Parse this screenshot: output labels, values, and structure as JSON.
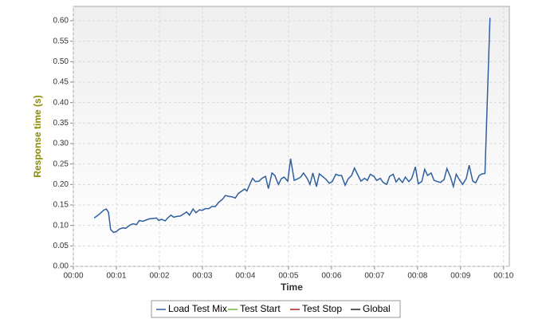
{
  "chart_data": {
    "type": "line",
    "xlabel": "Time",
    "ylabel": "Response time (s)",
    "grid": true,
    "xlim": [
      0,
      608
    ],
    "ylim": [
      0,
      0.635
    ],
    "xticks": [
      {
        "value": 0,
        "label": "00:00"
      },
      {
        "value": 60,
        "label": "00:01"
      },
      {
        "value": 120,
        "label": "00:02"
      },
      {
        "value": 180,
        "label": "00:03"
      },
      {
        "value": 240,
        "label": "00:04"
      },
      {
        "value": 300,
        "label": "00:05"
      },
      {
        "value": 360,
        "label": "00:06"
      },
      {
        "value": 420,
        "label": "00:07"
      },
      {
        "value": 480,
        "label": "00:08"
      },
      {
        "value": 540,
        "label": "00:09"
      },
      {
        "value": 600,
        "label": "00:10"
      }
    ],
    "yticks": [
      {
        "value": 0,
        "label": "0.00"
      },
      {
        "value": 0.05,
        "label": "0.05"
      },
      {
        "value": 0.1,
        "label": "0.10"
      },
      {
        "value": 0.15,
        "label": "0.15"
      },
      {
        "value": 0.2,
        "label": "0.20"
      },
      {
        "value": 0.25,
        "label": "0.25"
      },
      {
        "value": 0.3,
        "label": "0.30"
      },
      {
        "value": 0.35,
        "label": "0.35"
      },
      {
        "value": 0.4,
        "label": "0.40"
      },
      {
        "value": 0.45,
        "label": "0.45"
      },
      {
        "value": 0.5,
        "label": "0.50"
      },
      {
        "value": 0.55,
        "label": "0.55"
      },
      {
        "value": 0.6,
        "label": "0.60"
      }
    ],
    "x": [
      29,
      36,
      42,
      46,
      49,
      52,
      56,
      60,
      64,
      69,
      73,
      79,
      83,
      88,
      92,
      97,
      101,
      106,
      111,
      116,
      119,
      123,
      128,
      132,
      136,
      140,
      144,
      149,
      153,
      158,
      162,
      167,
      171,
      176,
      180,
      184,
      189,
      193,
      198,
      202,
      208,
      212,
      217,
      221,
      226,
      230,
      234,
      239,
      242,
      246,
      250,
      254,
      259,
      263,
      268,
      272,
      277,
      281,
      286,
      290,
      294,
      299,
      303,
      308,
      312,
      317,
      321,
      326,
      330,
      334,
      339,
      343,
      348,
      352,
      357,
      361,
      366,
      370,
      374,
      379,
      383,
      388,
      392,
      397,
      401,
      406,
      410,
      414,
      419,
      423,
      428,
      432,
      437,
      441,
      446,
      450,
      454,
      459,
      463,
      468,
      472,
      477,
      481,
      486,
      490,
      494,
      499,
      503,
      508,
      512,
      517,
      521,
      526,
      530,
      534,
      539,
      543,
      548,
      552,
      557,
      561,
      566,
      570,
      574,
      581
    ],
    "series": [
      {
        "name": "Load Test Mix",
        "color": "#2f5f9f",
        "values": [
          0.118,
          0.127,
          0.137,
          0.14,
          0.132,
          0.09,
          0.083,
          0.085,
          0.091,
          0.094,
          0.093,
          0.101,
          0.104,
          0.102,
          0.112,
          0.11,
          0.113,
          0.116,
          0.117,
          0.118,
          0.112,
          0.115,
          0.111,
          0.119,
          0.125,
          0.12,
          0.122,
          0.123,
          0.127,
          0.133,
          0.125,
          0.14,
          0.131,
          0.138,
          0.137,
          0.141,
          0.141,
          0.146,
          0.146,
          0.155,
          0.164,
          0.173,
          0.171,
          0.17,
          0.167,
          0.178,
          0.183,
          0.189,
          0.184,
          0.2,
          0.215,
          0.207,
          0.208,
          0.215,
          0.22,
          0.19,
          0.228,
          0.222,
          0.2,
          0.214,
          0.218,
          0.208,
          0.263,
          0.21,
          0.213,
          0.218,
          0.228,
          0.215,
          0.2,
          0.228,
          0.195,
          0.226,
          0.219,
          0.213,
          0.203,
          0.207,
          0.225,
          0.222,
          0.222,
          0.198,
          0.213,
          0.222,
          0.24,
          0.222,
          0.208,
          0.215,
          0.21,
          0.225,
          0.22,
          0.21,
          0.215,
          0.205,
          0.2,
          0.22,
          0.225,
          0.206,
          0.215,
          0.205,
          0.218,
          0.207,
          0.215,
          0.243,
          0.202,
          0.207,
          0.237,
          0.222,
          0.228,
          0.21,
          0.207,
          0.205,
          0.212,
          0.239,
          0.218,
          0.195,
          0.225,
          0.21,
          0.2,
          0.215,
          0.247,
          0.208,
          0.204,
          0.222,
          0.226,
          0.227,
          0.607
        ]
      }
    ],
    "legend": [
      {
        "name": "Load Test Mix",
        "color": "#2f5f9f"
      },
      {
        "name": "Test Start",
        "color": "#66bb44"
      },
      {
        "name": "Test Stop",
        "color": "#aa2222"
      },
      {
        "name": "Global",
        "color": "#222222"
      }
    ]
  }
}
